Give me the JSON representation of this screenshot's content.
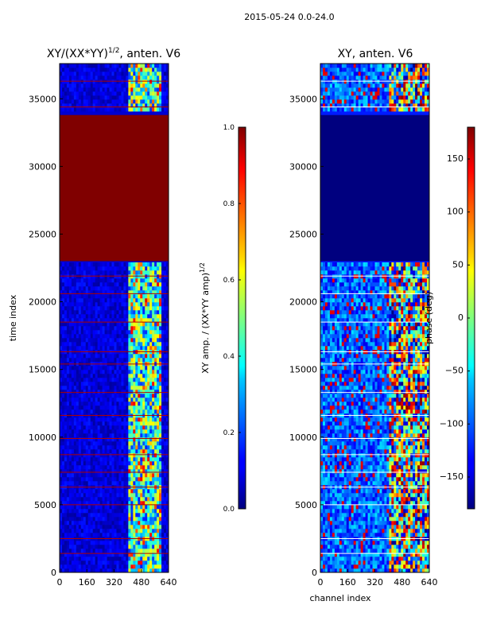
{
  "figure_title": "2015-05-24 0.0-24.0",
  "colors": {
    "frame": "#000000",
    "dark_red": "#800000",
    "background": "#ffffff"
  },
  "chart_data": [
    {
      "type": "heatmap",
      "title": "XY/(XX*YY)^1/2, anten. V6",
      "title_main": "XY/(XX*YY)",
      "title_exp": "1/2",
      "title_tail": ", anten. V6",
      "xlabel": "",
      "ylabel": "time index",
      "xlim": [
        0,
        640
      ],
      "ylim": [
        0,
        37600
      ],
      "x_ticks": [
        0,
        160,
        320,
        480,
        640
      ],
      "y_ticks": [
        0,
        5000,
        10000,
        15000,
        20000,
        25000,
        30000,
        35000
      ],
      "colormap": "jet",
      "saturated_block": {
        "y_range": [
          23000,
          33800
        ],
        "value": 1.0
      },
      "colorbar": {
        "label": "XY amp. / (XX*YY amp)^1/2",
        "label_main": "XY amp. / (XX*YY amp)",
        "label_exp": "1/2",
        "range": [
          0.0,
          1.0
        ],
        "ticks": [
          "0.0",
          "0.2",
          "0.4",
          "0.6",
          "0.8",
          "1.0"
        ]
      }
    },
    {
      "type": "heatmap",
      "title": "XY, anten. V6",
      "xlabel": "channel index",
      "ylabel": "",
      "xlim": [
        0,
        640
      ],
      "ylim": [
        0,
        37600
      ],
      "x_ticks": [
        0,
        160,
        320,
        480,
        640
      ],
      "y_ticks": [
        0,
        5000,
        10000,
        15000,
        20000,
        25000,
        30000,
        35000
      ],
      "colormap": "jet",
      "saturated_block": {
        "y_range": [
          23000,
          33800
        ],
        "value": -180
      },
      "colorbar": {
        "label": "phase (deg)",
        "range": [
          -180,
          180
        ],
        "ticks": [
          "150",
          "100",
          "50",
          "0",
          "−50",
          "−100",
          "−150"
        ],
        "tick_values": [
          150,
          100,
          50,
          0,
          -50,
          -100,
          -150
        ]
      }
    }
  ]
}
